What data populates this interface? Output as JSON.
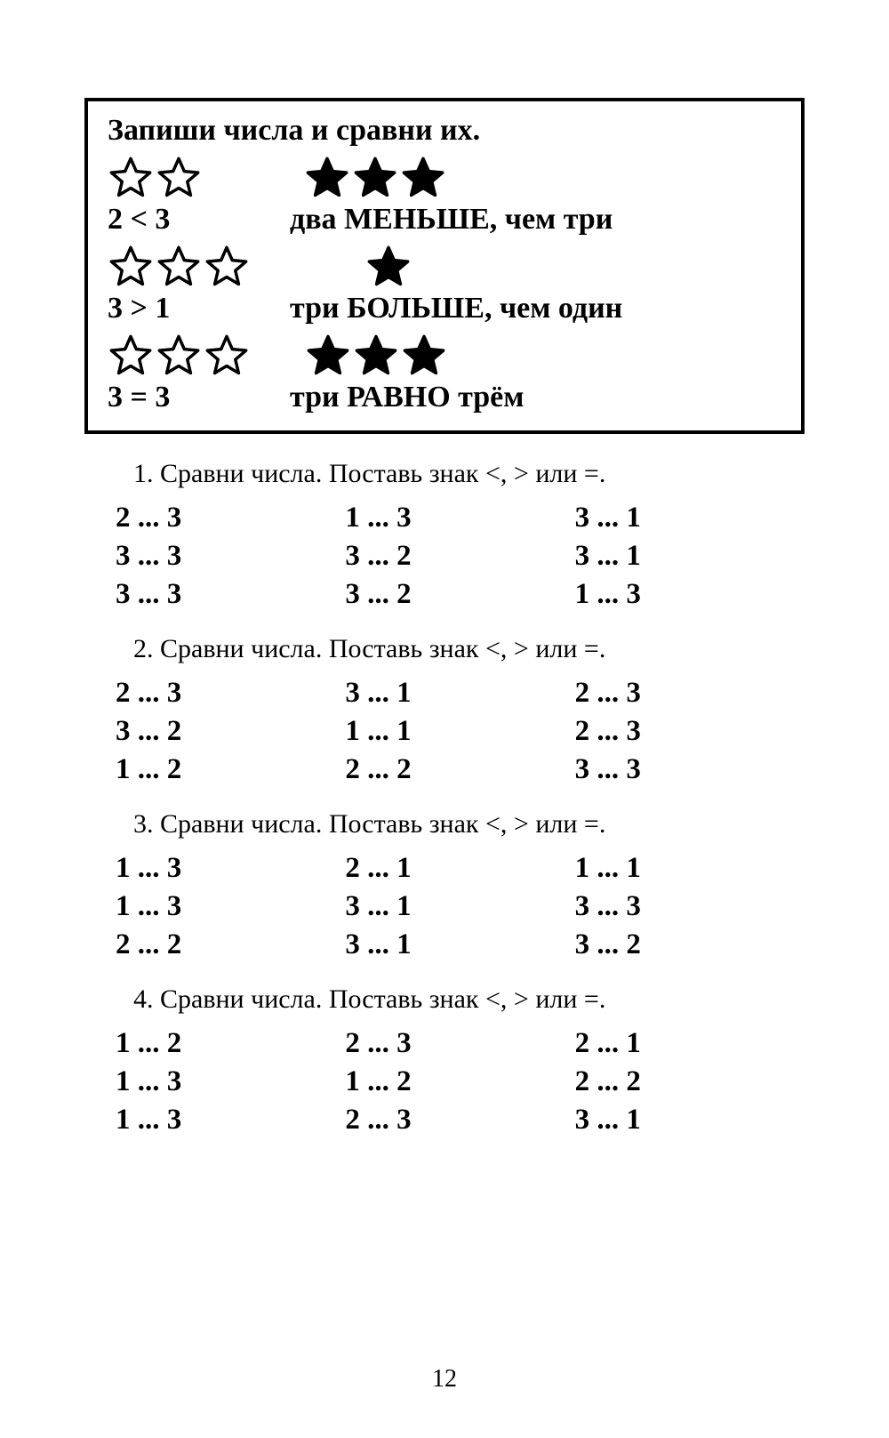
{
  "page_number": "12",
  "frame": {
    "title": "Запиши числа и сравни их.",
    "rows": [
      {
        "left_stars": 2,
        "left_fill": false,
        "right_stars": 3,
        "right_fill": true,
        "expr": "2 < 3",
        "text": "два МЕНЬШЕ, чем три"
      },
      {
        "left_stars": 3,
        "left_fill": false,
        "right_stars": 1,
        "right_fill": true,
        "expr": "3 > 1",
        "text": "три БОЛЬШЕ, чем один"
      },
      {
        "left_stars": 3,
        "left_fill": false,
        "right_stars": 3,
        "right_fill": true,
        "expr": "3 = 3",
        "text": "три РАВНО трём"
      }
    ]
  },
  "exercises": [
    {
      "title": "1. Сравни числа. Поставь знак <, > или =.",
      "cells": [
        "2 ... 3",
        "1 ... 3",
        "3 ... 1",
        "3 ... 3",
        "3 ... 2",
        "3 ... 1",
        "3 ... 3",
        "3 ... 2",
        "1 ... 3"
      ]
    },
    {
      "title": "2. Сравни числа. Поставь знак <, > или =.",
      "cells": [
        "2 ... 3",
        "3 ... 1",
        "2 ... 3",
        "3 ... 2",
        "1 ... 1",
        "2 ... 3",
        "1 ... 2",
        "2 ... 2",
        "3 ... 3"
      ]
    },
    {
      "title": "3. Сравни числа. Поставь знак <, > или =.",
      "cells": [
        "1 ... 3",
        "2 ... 1",
        "1 ... 1",
        "1 ... 3",
        "3 ... 1",
        "3 ... 3",
        "2 ... 2",
        "3 ... 1",
        "3 ... 2"
      ]
    },
    {
      "title": "4. Сравни числа. Поставь знак <, > или =.",
      "cells": [
        "1 ... 2",
        "2 ... 3",
        "2 ... 1",
        "1 ... 3",
        "1 ... 2",
        "2 ... 2",
        "1 ... 3",
        "2 ... 3",
        "3 ... 1"
      ]
    }
  ],
  "colors": {
    "text": "#000000",
    "bg": "#ffffff"
  },
  "fonts": {
    "body": "Century Schoolbook",
    "title_size": 34,
    "ex_title_size": 30,
    "cell_size": 33
  }
}
